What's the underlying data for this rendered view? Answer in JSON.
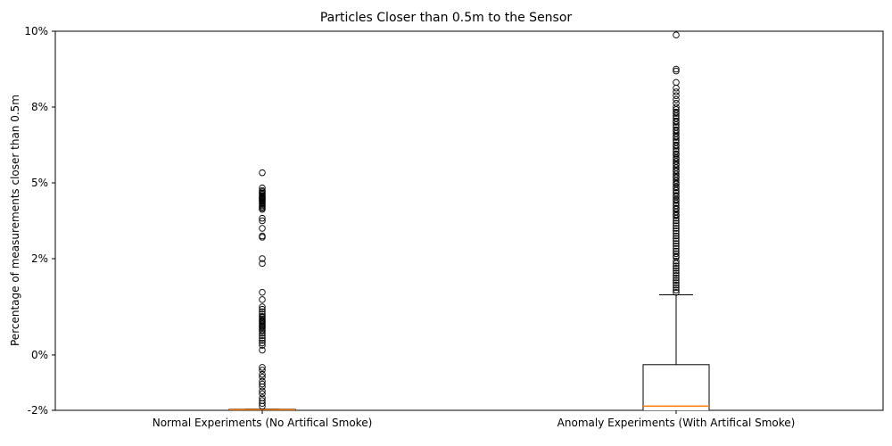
{
  "chart_data": {
    "type": "boxplot",
    "title": "Particles Closer than 0.5m to the Sensor",
    "ylabel": "Percentage of measurements closer than 0.5m",
    "categories": [
      "Normal Experiments (No Artifical Smoke)",
      "Anomaly Experiments (With Artifical Smoke)"
    ],
    "y_ticks": [
      {
        "label": "10%",
        "value": 10
      },
      {
        "label": "8%",
        "value": 8
      },
      {
        "label": "5%",
        "value": 5
      },
      {
        "label": "2%",
        "value": 2
      },
      {
        "label": "0%",
        "value": 0
      },
      {
        "label": "-2%",
        "value": -2
      }
    ],
    "grid": false,
    "legend": "none",
    "colors": {
      "median_line": "#ff7f0e",
      "box_line": "#000000",
      "outlier_stroke": "#000000"
    },
    "series": [
      {
        "name": "Normal Experiments (No Artifical Smoke)",
        "q1": -2.0,
        "median": -1.98,
        "q3": -1.96,
        "whisker_low": -2.0,
        "whisker_high": -1.96,
        "outliers": [
          5.4,
          4.8,
          4.7,
          4.65,
          4.6,
          4.55,
          4.5,
          4.45,
          4.42,
          4.4,
          4.38,
          4.35,
          4.3,
          4.28,
          4.25,
          4.2,
          4.15,
          4.1,
          4.05,
          4.0,
          3.95,
          3.6,
          3.5,
          3.2,
          2.9,
          2.85,
          2.0,
          1.9,
          1.3,
          1.15,
          1.0,
          0.95,
          0.9,
          0.85,
          0.8,
          0.78,
          0.75,
          0.72,
          0.7,
          0.68,
          0.65,
          0.62,
          0.6,
          0.58,
          0.55,
          0.52,
          0.5,
          0.45,
          0.4,
          0.35,
          0.3,
          0.25,
          0.2,
          0.1,
          -0.45,
          -0.55,
          -0.7,
          -0.8,
          -0.95,
          -1.05,
          -1.15,
          -1.3,
          -1.4,
          -1.55,
          -1.65,
          -1.75,
          -1.85
        ]
      },
      {
        "name": "Anomaly Experiments (With Artifical Smoke)",
        "q1": -2.2,
        "median": -1.85,
        "q3": -0.35,
        "whisker_low": -2.2,
        "whisker_high": 1.25,
        "outliers": [
          9.9,
          9.0,
          8.95,
          8.65,
          8.5,
          8.4,
          8.3,
          8.2,
          8.1,
          8.0,
          7.9,
          7.8,
          7.75,
          7.65,
          7.55,
          7.45,
          7.4,
          7.3,
          7.2,
          7.1,
          7.05,
          6.95,
          6.85,
          6.8,
          6.7,
          6.6,
          6.5,
          6.45,
          6.35,
          6.25,
          6.15,
          6.1,
          6.0,
          5.95,
          5.85,
          5.75,
          5.7,
          5.6,
          5.5,
          5.45,
          5.35,
          5.25,
          5.2,
          5.1,
          5.0,
          4.95,
          4.85,
          4.8,
          4.7,
          4.6,
          4.5,
          4.45,
          4.35,
          4.3,
          4.2,
          4.1,
          4.0,
          3.95,
          3.85,
          3.75,
          3.7,
          3.6,
          3.5,
          3.4,
          3.3,
          3.2,
          3.1,
          3.0,
          2.9,
          2.8,
          2.7,
          2.6,
          2.5,
          2.4,
          2.3,
          2.2,
          2.1,
          2.05,
          1.95,
          1.9,
          1.85,
          1.8,
          1.75,
          1.7,
          1.65,
          1.6,
          1.55,
          1.5,
          1.45,
          1.4,
          1.35,
          1.3
        ]
      }
    ]
  }
}
